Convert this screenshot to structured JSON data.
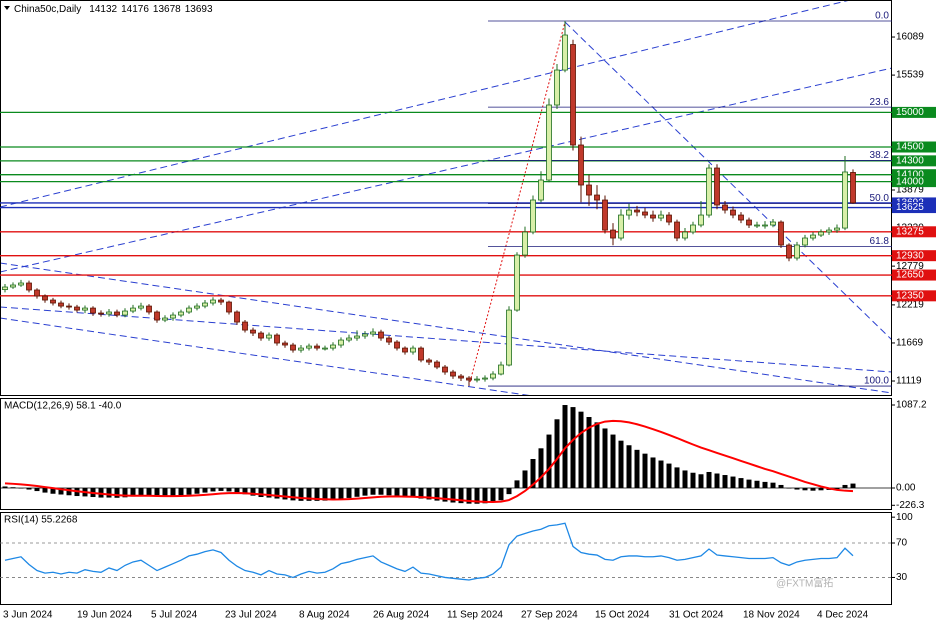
{
  "chart_data": [
    {
      "type": "candlestick",
      "title": "China50c,Daily",
      "open": [
        12440,
        12477,
        12506,
        12535,
        12434,
        12347,
        12289,
        12246,
        12202,
        12188,
        12144,
        12173,
        12101,
        12087,
        12116,
        12072,
        12130,
        12173,
        12202,
        12116,
        12000,
        12029,
        12072,
        12116,
        12173,
        12202,
        12246,
        12289,
        12260,
        12116,
        11971,
        11855,
        11812,
        11740,
        11783,
        11668,
        11639,
        11566,
        11595,
        11624,
        11595,
        11595,
        11639,
        11711,
        11740,
        11769,
        11798,
        11827,
        11740,
        11682,
        11595,
        11538,
        11595,
        11422,
        11393,
        11321,
        11249,
        11191,
        11162,
        11133,
        11147,
        11162,
        11220,
        11350,
        12144,
        12939,
        13272,
        13734,
        14023,
        15107,
        15612,
        15980,
        14529,
        13951,
        13806,
        13734,
        13300,
        13185,
        13517,
        13589,
        13561,
        13517,
        13474,
        13517,
        13416,
        13185,
        13272,
        13373,
        13517,
        14196,
        13662,
        13589,
        13517,
        13445,
        13373,
        13373,
        13373,
        13416,
        13084,
        12896,
        13084,
        13185,
        13228,
        13272,
        13300,
        13329,
        14132
      ],
      "high": [
        12520,
        12545,
        12580,
        12570,
        12460,
        12370,
        12320,
        12280,
        12240,
        12220,
        12210,
        12200,
        12140,
        12160,
        12150,
        12170,
        12220,
        12250,
        12230,
        12140,
        12070,
        12110,
        12150,
        12210,
        12240,
        12290,
        12330,
        12320,
        12280,
        12140,
        12000,
        11890,
        11840,
        11820,
        11810,
        11700,
        11670,
        11640,
        11660,
        11660,
        11630,
        11680,
        11750,
        11790,
        11850,
        11840,
        11880,
        11860,
        11770,
        11710,
        11620,
        11630,
        11620,
        11450,
        11420,
        11350,
        11280,
        11220,
        11190,
        11190,
        11200,
        11260,
        11400,
        12200,
        12980,
        13350,
        13800,
        14150,
        15200,
        15700,
        16321,
        16050,
        14650,
        14100,
        13950,
        13800,
        13400,
        13600,
        13680,
        13650,
        13620,
        13580,
        13580,
        13560,
        13450,
        13330,
        13420,
        13720,
        14250,
        14250,
        13720,
        13640,
        13560,
        13480,
        13420,
        13430,
        13460,
        13440,
        13110,
        13130,
        13230,
        13270,
        13310,
        13340,
        13380,
        14370,
        14176
      ],
      "low": [
        12400,
        12450,
        12480,
        12400,
        12310,
        12250,
        12210,
        12170,
        12150,
        12110,
        12100,
        12060,
        12050,
        12050,
        12040,
        12040,
        12100,
        12140,
        12080,
        11960,
        11970,
        11990,
        12040,
        12090,
        12140,
        12170,
        12210,
        12220,
        12080,
        11930,
        11820,
        11770,
        11700,
        11700,
        11630,
        11600,
        11530,
        11530,
        11560,
        11560,
        11560,
        11560,
        11600,
        11680,
        11700,
        11730,
        11760,
        11700,
        11640,
        11560,
        11500,
        11500,
        11390,
        11350,
        11290,
        11210,
        11150,
        11120,
        11046,
        11100,
        11110,
        11130,
        11200,
        11330,
        12120,
        12900,
        13240,
        13700,
        13990,
        15050,
        15580,
        14450,
        13700,
        13650,
        13600,
        13250,
        13080,
        13150,
        13450,
        13500,
        13470,
        13420,
        13430,
        13370,
        13140,
        13150,
        13240,
        13340,
        13480,
        13600,
        13540,
        13470,
        13400,
        13330,
        13330,
        13320,
        13340,
        13040,
        12850,
        12860,
        13050,
        13150,
        13200,
        13230,
        13260,
        13300,
        13678
      ],
      "close": [
        12477,
        12506,
        12535,
        12434,
        12347,
        12289,
        12246,
        12202,
        12188,
        12144,
        12173,
        12101,
        12087,
        12116,
        12072,
        12130,
        12173,
        12202,
        12116,
        12000,
        12029,
        12072,
        12116,
        12173,
        12202,
        12246,
        12289,
        12260,
        12116,
        11971,
        11855,
        11812,
        11740,
        11783,
        11668,
        11639,
        11566,
        11595,
        11624,
        11595,
        11595,
        11639,
        11711,
        11740,
        11769,
        11798,
        11827,
        11740,
        11682,
        11595,
        11538,
        11595,
        11422,
        11393,
        11321,
        11249,
        11191,
        11162,
        11133,
        11147,
        11162,
        11220,
        11350,
        12144,
        12939,
        13272,
        13734,
        14023,
        15107,
        15612,
        16118,
        14529,
        13951,
        13806,
        13734,
        13300,
        13185,
        13517,
        13589,
        13561,
        13517,
        13474,
        13517,
        13416,
        13185,
        13272,
        13373,
        13517,
        14196,
        13662,
        13589,
        13517,
        13445,
        13373,
        13373,
        13373,
        13416,
        13084,
        12896,
        13084,
        13185,
        13228,
        13272,
        13300,
        13329,
        14139,
        13693
      ],
      "up_color": "#d8efa8",
      "down_color": "#c0392b",
      "up_edge": "#1f6d1f",
      "down_edge": "#5a1200",
      "ylim": [
        10917,
        16624
      ],
      "yticks": [
        16089,
        15539,
        13879,
        13330,
        12779,
        12219,
        11669,
        11119
      ],
      "levels": [
        {
          "value": 15000,
          "color": "#0a8a1e"
        },
        {
          "value": 14500,
          "color": "#0a8a1e"
        },
        {
          "value": 14300,
          "color": "#0a8a1e"
        },
        {
          "value": 14100,
          "color": "#0a8a1e"
        },
        {
          "value": 14000,
          "color": "#0a8a1e"
        },
        {
          "value": 13692,
          "color": "#1c2fb8"
        },
        {
          "value": 13625,
          "color": "#1c2fb8"
        },
        {
          "value": 13275,
          "color": "#e01010"
        },
        {
          "value": 12930,
          "color": "#e01010"
        },
        {
          "value": 12650,
          "color": "#e01010"
        },
        {
          "value": 12350,
          "color": "#e01010"
        }
      ],
      "fibonacci": {
        "high": 16321,
        "low": 11046,
        "color": "#1a1a7a",
        "levels": [
          {
            "value": 0,
            "label": "0.0"
          },
          {
            "value": 23.6,
            "label": "23.6"
          },
          {
            "value": 38.2,
            "label": "38.2"
          },
          {
            "value": 50,
            "label": "50.0"
          },
          {
            "value": 61.8,
            "label": "61.8"
          },
          {
            "value": 100,
            "label": "100.0"
          }
        ]
      },
      "x_labels": [
        "3 Jun 2024",
        "19 Jun 2024",
        "5 Jul 2024",
        "23 Jul 2024",
        "8 Aug 2024",
        "26 Aug 2024",
        "11 Sep 2024",
        "27 Sep 2024",
        "15 Oct 2024",
        "31 Oct 2024",
        "18 Nov 2024",
        "4 Dec 2024"
      ],
      "watermark": "@FXTM富拓"
    },
    {
      "type": "macd",
      "title": "MACD(12,26,9) 58.1 -40.0",
      "histogram": {
        "color": "#000000",
        "values": [
          20,
          10,
          0,
          -20,
          -40,
          -60,
          -75,
          -85,
          -95,
          -105,
          -110,
          -118,
          -125,
          -125,
          -128,
          -122,
          -112,
          -100,
          -100,
          -110,
          -112,
          -108,
          -100,
          -88,
          -75,
          -60,
          -45,
          -38,
          -45,
          -62,
          -82,
          -100,
          -118,
          -125,
          -138,
          -150,
          -162,
          -168,
          -168,
          -168,
          -165,
          -158,
          -145,
          -130,
          -115,
          -100,
          -88,
          -88,
          -95,
          -108,
          -120,
          -122,
          -138,
          -150,
          -165,
          -178,
          -190,
          -198,
          -205,
          -206,
          -200,
          -188,
          -160,
          -80,
          100,
          230,
          380,
          520,
          700,
          900,
          1087,
          1060,
          1000,
          930,
          860,
          780,
          700,
          620,
          560,
          500,
          450,
          400,
          360,
          320,
          270,
          230,
          200,
          180,
          210,
          190,
          170,
          150,
          130,
          110,
          95,
          80,
          70,
          40,
          0,
          -20,
          -30,
          -35,
          -30,
          -25,
          -15,
          40,
          58.1
        ]
      },
      "signal": {
        "color": "#ff0000",
        "values": [
          60,
          55,
          48,
          38,
          26,
          12,
          -2,
          -16,
          -30,
          -42,
          -54,
          -65,
          -75,
          -85,
          -93,
          -99,
          -102,
          -102,
          -102,
          -104,
          -106,
          -106,
          -105,
          -102,
          -97,
          -90,
          -81,
          -72,
          -67,
          -66,
          -69,
          -75,
          -84,
          -92,
          -101,
          -111,
          -121,
          -131,
          -138,
          -144,
          -148,
          -150,
          -149,
          -145,
          -139,
          -131,
          -122,
          -115,
          -111,
          -110,
          -112,
          -114,
          -119,
          -125,
          -133,
          -142,
          -151,
          -161,
          -170,
          -177,
          -182,
          -183,
          -178,
          -158,
          -106,
          -39,
          45,
          140,
          250,
          380,
          520,
          630,
          720,
          790,
          840,
          870,
          880,
          875,
          860,
          835,
          805,
          770,
          735,
          695,
          655,
          612,
          570,
          530,
          495,
          460,
          425,
          390,
          355,
          320,
          285,
          250,
          220,
          185,
          150,
          115,
          80,
          50,
          20,
          -5,
          -25,
          -35,
          -40
        ]
      },
      "ylim": [
        -288,
        1179
      ],
      "yticks": [
        1087.2,
        {
          "value": 0,
          "label": "0.00"
        },
        -226.3
      ]
    },
    {
      "type": "line",
      "title": "RSI(14) 55.2268",
      "color": "#1e88e5",
      "values": [
        50,
        52,
        54,
        45,
        38,
        35,
        36,
        34,
        36,
        35,
        39,
        37,
        36,
        41,
        38,
        44,
        48,
        50,
        44,
        38,
        42,
        46,
        50,
        55,
        57,
        60,
        62,
        59,
        50,
        43,
        38,
        36,
        33,
        38,
        34,
        33,
        30,
        34,
        37,
        35,
        36,
        40,
        46,
        48,
        51,
        53,
        55,
        48,
        44,
        40,
        37,
        42,
        35,
        34,
        32,
        30,
        29,
        28,
        27,
        29,
        30,
        34,
        42,
        68,
        78,
        81,
        84,
        86,
        90,
        91,
        93,
        66,
        59,
        57,
        56,
        51,
        50,
        54,
        55,
        55,
        54,
        54,
        55,
        53,
        50,
        51,
        53,
        55,
        63,
        56,
        55,
        54,
        53,
        52,
        52,
        52,
        53,
        47,
        44,
        48,
        50,
        51,
        52,
        52,
        53,
        64,
        55.2268
      ],
      "ylim": [
        -2,
        106
      ],
      "yticks": [
        100,
        70,
        30
      ],
      "levels": [
        70,
        30
      ]
    }
  ]
}
